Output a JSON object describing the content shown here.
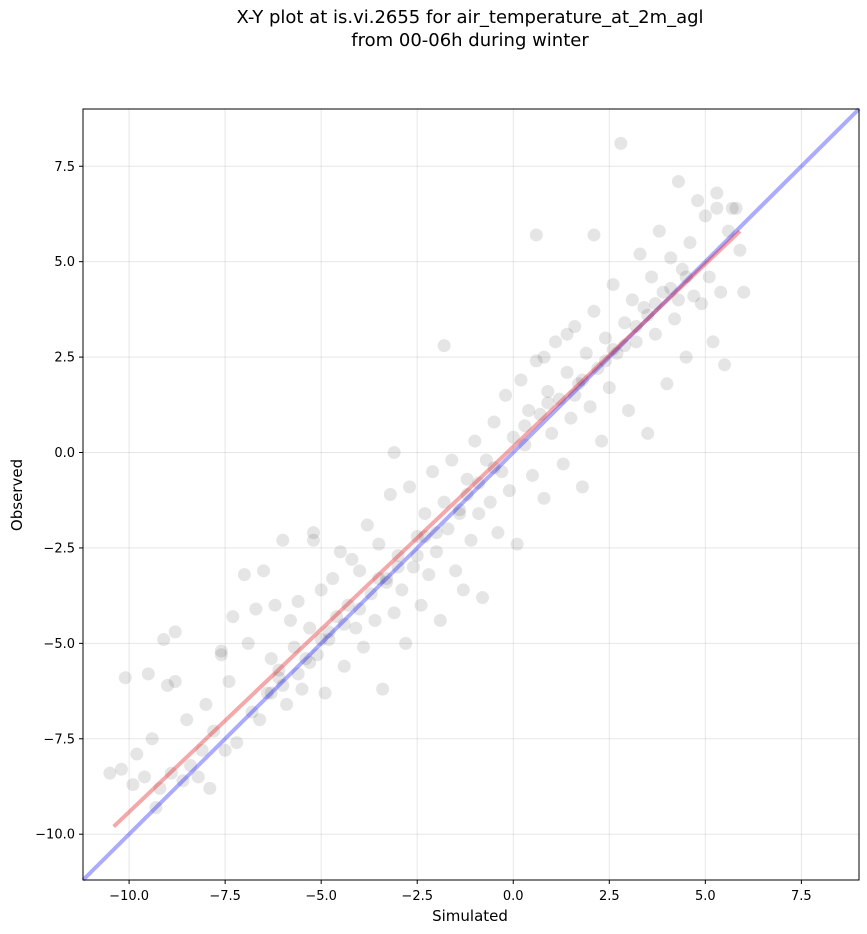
{
  "chart_data": {
    "type": "scatter",
    "title_line1": "X-Y plot at is.vi.2655 for air_temperature_at_2m_agl",
    "title_line2": "from 00-06h during winter",
    "xlabel": "Simulated",
    "ylabel": "Observed",
    "xlim": [
      -11.2,
      9.0
    ],
    "ylim": [
      -11.2,
      9.0
    ],
    "x_ticks": [
      -10.0,
      -7.5,
      -5.0,
      -2.5,
      0.0,
      2.5,
      5.0,
      7.5
    ],
    "y_ticks": [
      -10.0,
      -7.5,
      -5.0,
      -2.5,
      0.0,
      2.5,
      5.0,
      7.5
    ],
    "x_tick_labels": [
      "−10.0",
      "−7.5",
      "−5.0",
      "−2.5",
      "0.0",
      "2.5",
      "5.0",
      "7.5"
    ],
    "y_tick_labels": [
      "−10.0",
      "−7.5",
      "−5.0",
      "−2.5",
      "0.0",
      "2.5",
      "5.0",
      "7.5"
    ],
    "grid": true,
    "series": [
      {
        "kind": "points",
        "color": "#000000",
        "opacity": 0.1,
        "points": [
          [
            -10.5,
            -8.4
          ],
          [
            -10.2,
            -8.3
          ],
          [
            -10.1,
            -5.9
          ],
          [
            -9.9,
            -8.7
          ],
          [
            -9.8,
            -7.9
          ],
          [
            -9.6,
            -8.5
          ],
          [
            -9.5,
            -5.8
          ],
          [
            -9.4,
            -7.5
          ],
          [
            -9.3,
            -9.3
          ],
          [
            -9.2,
            -8.8
          ],
          [
            -9.0,
            -6.1
          ],
          [
            -8.9,
            -8.4
          ],
          [
            -8.8,
            -6.0
          ],
          [
            -8.6,
            -8.6
          ],
          [
            -8.5,
            -7.0
          ],
          [
            -8.4,
            -8.2
          ],
          [
            -8.2,
            -8.5
          ],
          [
            -8.1,
            -7.8
          ],
          [
            -8.0,
            -6.6
          ],
          [
            -7.9,
            -8.8
          ],
          [
            -7.8,
            -7.3
          ],
          [
            -7.6,
            -5.2
          ],
          [
            -7.5,
            -7.8
          ],
          [
            -7.4,
            -6.0
          ],
          [
            -7.3,
            -4.3
          ],
          [
            -7.2,
            -7.6
          ],
          [
            -7.0,
            -3.2
          ],
          [
            -6.9,
            -5.0
          ],
          [
            -6.8,
            -6.8
          ],
          [
            -6.7,
            -4.1
          ],
          [
            -6.6,
            -7.0
          ],
          [
            -6.5,
            -3.1
          ],
          [
            -6.4,
            -6.3
          ],
          [
            -6.3,
            -5.4
          ],
          [
            -6.2,
            -4.0
          ],
          [
            -6.1,
            -5.9
          ],
          [
            -6.0,
            -2.3
          ],
          [
            -5.9,
            -6.6
          ],
          [
            -5.8,
            -4.4
          ],
          [
            -5.7,
            -5.1
          ],
          [
            -5.6,
            -3.9
          ],
          [
            -5.5,
            -6.2
          ],
          [
            -5.4,
            -5.4
          ],
          [
            -5.3,
            -4.6
          ],
          [
            -5.2,
            -2.1
          ],
          [
            -5.1,
            -5.3
          ],
          [
            -5.0,
            -3.6
          ],
          [
            -4.9,
            -6.3
          ],
          [
            -4.8,
            -4.9
          ],
          [
            -4.7,
            -3.3
          ],
          [
            -4.6,
            -4.3
          ],
          [
            -4.5,
            -2.6
          ],
          [
            -4.4,
            -5.6
          ],
          [
            -4.3,
            -4.0
          ],
          [
            -4.2,
            -2.8
          ],
          [
            -4.1,
            -4.6
          ],
          [
            -4.0,
            -3.1
          ],
          [
            -3.9,
            -5.1
          ],
          [
            -3.8,
            -1.9
          ],
          [
            -3.7,
            -3.7
          ],
          [
            -3.6,
            -4.4
          ],
          [
            -3.5,
            -2.4
          ],
          [
            -3.4,
            -6.2
          ],
          [
            -3.3,
            -3.3
          ],
          [
            -3.2,
            -1.1
          ],
          [
            -3.1,
            -4.2
          ],
          [
            -3.0,
            -2.7
          ],
          [
            -2.9,
            -3.6
          ],
          [
            -2.8,
            -5.0
          ],
          [
            -2.7,
            -0.9
          ],
          [
            -2.6,
            -3.0
          ],
          [
            -2.5,
            -2.2
          ],
          [
            -2.4,
            -4.0
          ],
          [
            -2.3,
            -1.6
          ],
          [
            -2.2,
            -3.2
          ],
          [
            -2.1,
            -0.5
          ],
          [
            -2.0,
            -2.6
          ],
          [
            -1.9,
            -4.4
          ],
          [
            -1.8,
            -1.3
          ],
          [
            -1.7,
            -2.0
          ],
          [
            -1.6,
            -0.2
          ],
          [
            -1.5,
            -3.1
          ],
          [
            -1.4,
            -1.6
          ],
          [
            -1.3,
            -3.6
          ],
          [
            -1.2,
            -0.7
          ],
          [
            -1.1,
            -2.3
          ],
          [
            -1.0,
            0.3
          ],
          [
            -0.9,
            -1.6
          ],
          [
            -0.8,
            -3.8
          ],
          [
            -0.7,
            -0.2
          ],
          [
            -0.6,
            -1.3
          ],
          [
            -0.5,
            0.8
          ],
          [
            -0.4,
            -2.1
          ],
          [
            -0.3,
            -0.5
          ],
          [
            -0.2,
            1.5
          ],
          [
            -0.1,
            -1.0
          ],
          [
            0.0,
            0.4
          ],
          [
            0.1,
            -2.4
          ],
          [
            0.2,
            1.9
          ],
          [
            0.3,
            0.2
          ],
          [
            0.4,
            1.1
          ],
          [
            0.5,
            -0.6
          ],
          [
            0.6,
            2.4
          ],
          [
            0.7,
            1.0
          ],
          [
            0.8,
            -1.2
          ],
          [
            0.9,
            1.6
          ],
          [
            1.0,
            0.5
          ],
          [
            1.1,
            2.9
          ],
          [
            1.2,
            1.4
          ],
          [
            1.3,
            -0.3
          ],
          [
            1.4,
            2.1
          ],
          [
            1.5,
            0.9
          ],
          [
            1.6,
            3.3
          ],
          [
            1.7,
            1.8
          ],
          [
            1.8,
            -0.9
          ],
          [
            1.9,
            2.6
          ],
          [
            2.0,
            1.2
          ],
          [
            2.1,
            3.7
          ],
          [
            2.2,
            2.2
          ],
          [
            2.3,
            0.3
          ],
          [
            2.4,
            3.0
          ],
          [
            2.5,
            1.7
          ],
          [
            2.6,
            4.4
          ],
          [
            2.7,
            2.6
          ],
          [
            2.8,
            8.1
          ],
          [
            2.9,
            3.4
          ],
          [
            3.0,
            1.1
          ],
          [
            3.1,
            4.0
          ],
          [
            3.2,
            2.9
          ],
          [
            3.3,
            5.2
          ],
          [
            3.4,
            3.8
          ],
          [
            3.5,
            0.5
          ],
          [
            3.6,
            4.6
          ],
          [
            3.7,
            3.1
          ],
          [
            3.8,
            5.8
          ],
          [
            3.9,
            4.2
          ],
          [
            4.0,
            1.8
          ],
          [
            4.1,
            5.1
          ],
          [
            4.2,
            3.5
          ],
          [
            4.3,
            7.1
          ],
          [
            4.4,
            4.8
          ],
          [
            4.5,
            2.5
          ],
          [
            4.6,
            5.5
          ],
          [
            4.7,
            4.1
          ],
          [
            4.8,
            6.6
          ],
          [
            4.9,
            3.9
          ],
          [
            5.0,
            6.2
          ],
          [
            5.1,
            4.6
          ],
          [
            5.2,
            2.9
          ],
          [
            5.3,
            6.8
          ],
          [
            5.4,
            4.2
          ],
          [
            5.5,
            2.3
          ],
          [
            5.6,
            5.8
          ],
          [
            5.7,
            6.4
          ],
          [
            5.9,
            5.3
          ],
          [
            6.0,
            4.2
          ],
          [
            5.8,
            6.4
          ],
          [
            5.3,
            6.4
          ],
          [
            2.1,
            5.7
          ],
          [
            0.6,
            5.7
          ],
          [
            -1.8,
            2.8
          ],
          [
            -3.1,
            -0.0
          ],
          [
            -5.2,
            -2.3
          ],
          [
            -6.1,
            -5.7
          ],
          [
            -7.6,
            -5.3
          ],
          [
            -8.8,
            -4.7
          ],
          [
            -9.1,
            -4.9
          ],
          [
            0.8,
            2.5
          ],
          [
            1.4,
            3.1
          ],
          [
            2.4,
            2.4
          ],
          [
            3.2,
            3.3
          ],
          [
            4.1,
            4.3
          ],
          [
            -0.5,
            -0.4
          ],
          [
            -1.4,
            -1.5
          ],
          [
            -2.5,
            -2.7
          ],
          [
            -3.5,
            -3.3
          ],
          [
            -4.4,
            -4.5
          ],
          [
            -5.3,
            -5.5
          ],
          [
            -6.3,
            -6.3
          ],
          [
            1.8,
            1.9
          ],
          [
            2.9,
            2.8
          ],
          [
            3.7,
            3.9
          ],
          [
            4.5,
            4.6
          ],
          [
            0.3,
            0.7
          ],
          [
            -0.9,
            -0.8
          ],
          [
            -2.0,
            -2.1
          ],
          [
            -3.0,
            -3.0
          ],
          [
            -4.0,
            -4.1
          ],
          [
            -5.0,
            -4.9
          ],
          [
            -6.0,
            -6.1
          ],
          [
            0.9,
            1.3
          ],
          [
            1.6,
            1.5
          ],
          [
            2.6,
            2.7
          ],
          [
            3.5,
            3.6
          ],
          [
            4.3,
            4.0
          ],
          [
            -1.2,
            -1.1
          ],
          [
            -2.3,
            -2.2
          ],
          [
            -3.3,
            -3.4
          ],
          [
            -4.8,
            -4.7
          ],
          [
            -5.6,
            -5.8
          ]
        ]
      },
      {
        "kind": "line",
        "name": "identity",
        "color": "#0000ff",
        "opacity": 0.33,
        "x": [
          -11.2,
          9.0
        ],
        "y": [
          -11.2,
          9.0
        ]
      },
      {
        "kind": "line",
        "name": "regression",
        "color": "#e31a1c",
        "opacity": 0.38,
        "x": [
          -10.4,
          5.9
        ],
        "y": [
          -9.8,
          5.8
        ]
      }
    ]
  }
}
